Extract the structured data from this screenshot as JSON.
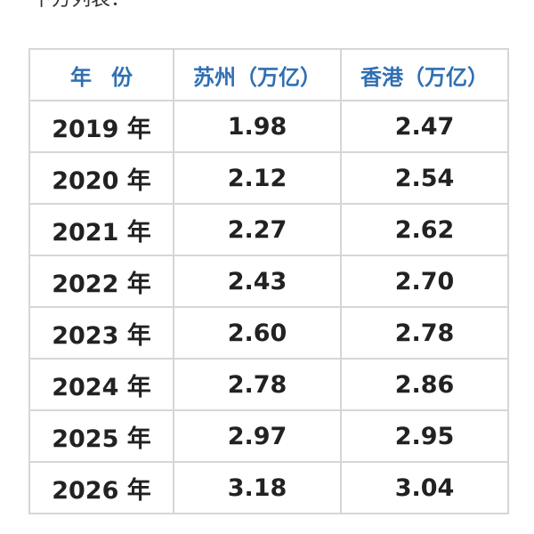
{
  "caption": "下方列表：",
  "table": {
    "headers": {
      "year": "年份",
      "suzhou": "苏州（万亿）",
      "hongkong": "香港（万亿）"
    },
    "rows": [
      {
        "year": "2019 年",
        "suzhou": "1.98",
        "hongkong": "2.47"
      },
      {
        "year": "2020 年",
        "suzhou": "2.12",
        "hongkong": "2.54"
      },
      {
        "year": "2021 年",
        "suzhou": "2.27",
        "hongkong": "2.62"
      },
      {
        "year": "2022 年",
        "suzhou": "2.43",
        "hongkong": "2.70"
      },
      {
        "year": "2023 年",
        "suzhou": "2.60",
        "hongkong": "2.78"
      },
      {
        "year": "2024 年",
        "suzhou": "2.78",
        "hongkong": "2.86"
      },
      {
        "year": "2025 年",
        "suzhou": "2.97",
        "hongkong": "2.95"
      },
      {
        "year": "2026 年",
        "suzhou": "3.18",
        "hongkong": "3.04"
      }
    ]
  },
  "colors": {
    "header_text": "#2f6fb3",
    "border": "#d6d6d6",
    "cell_text": "#222222"
  }
}
